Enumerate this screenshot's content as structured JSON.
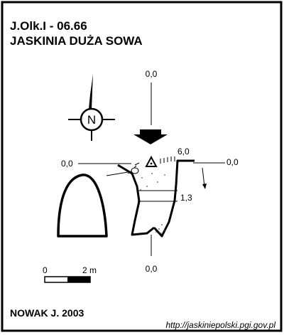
{
  "header": {
    "code": "J.Olk.I - 06.66",
    "name": "JASKINIA DUŻA SOWA"
  },
  "plan": {
    "north_label": "N",
    "levels": {
      "top": "0,0",
      "left": "0,0",
      "right": "0,0",
      "bottom": "0,0",
      "ceiling": "6,0",
      "floor": "1,3"
    }
  },
  "scale_bar": {
    "start": "0",
    "end": "2 m"
  },
  "footer": {
    "author": "NOWAK J.  2003",
    "url": "http://jaskiniepolski.pgi.gov.pl"
  },
  "colors": {
    "ink": "#000000",
    "frame": "#000000",
    "background": "#ffffff",
    "stipple": "#555555"
  }
}
